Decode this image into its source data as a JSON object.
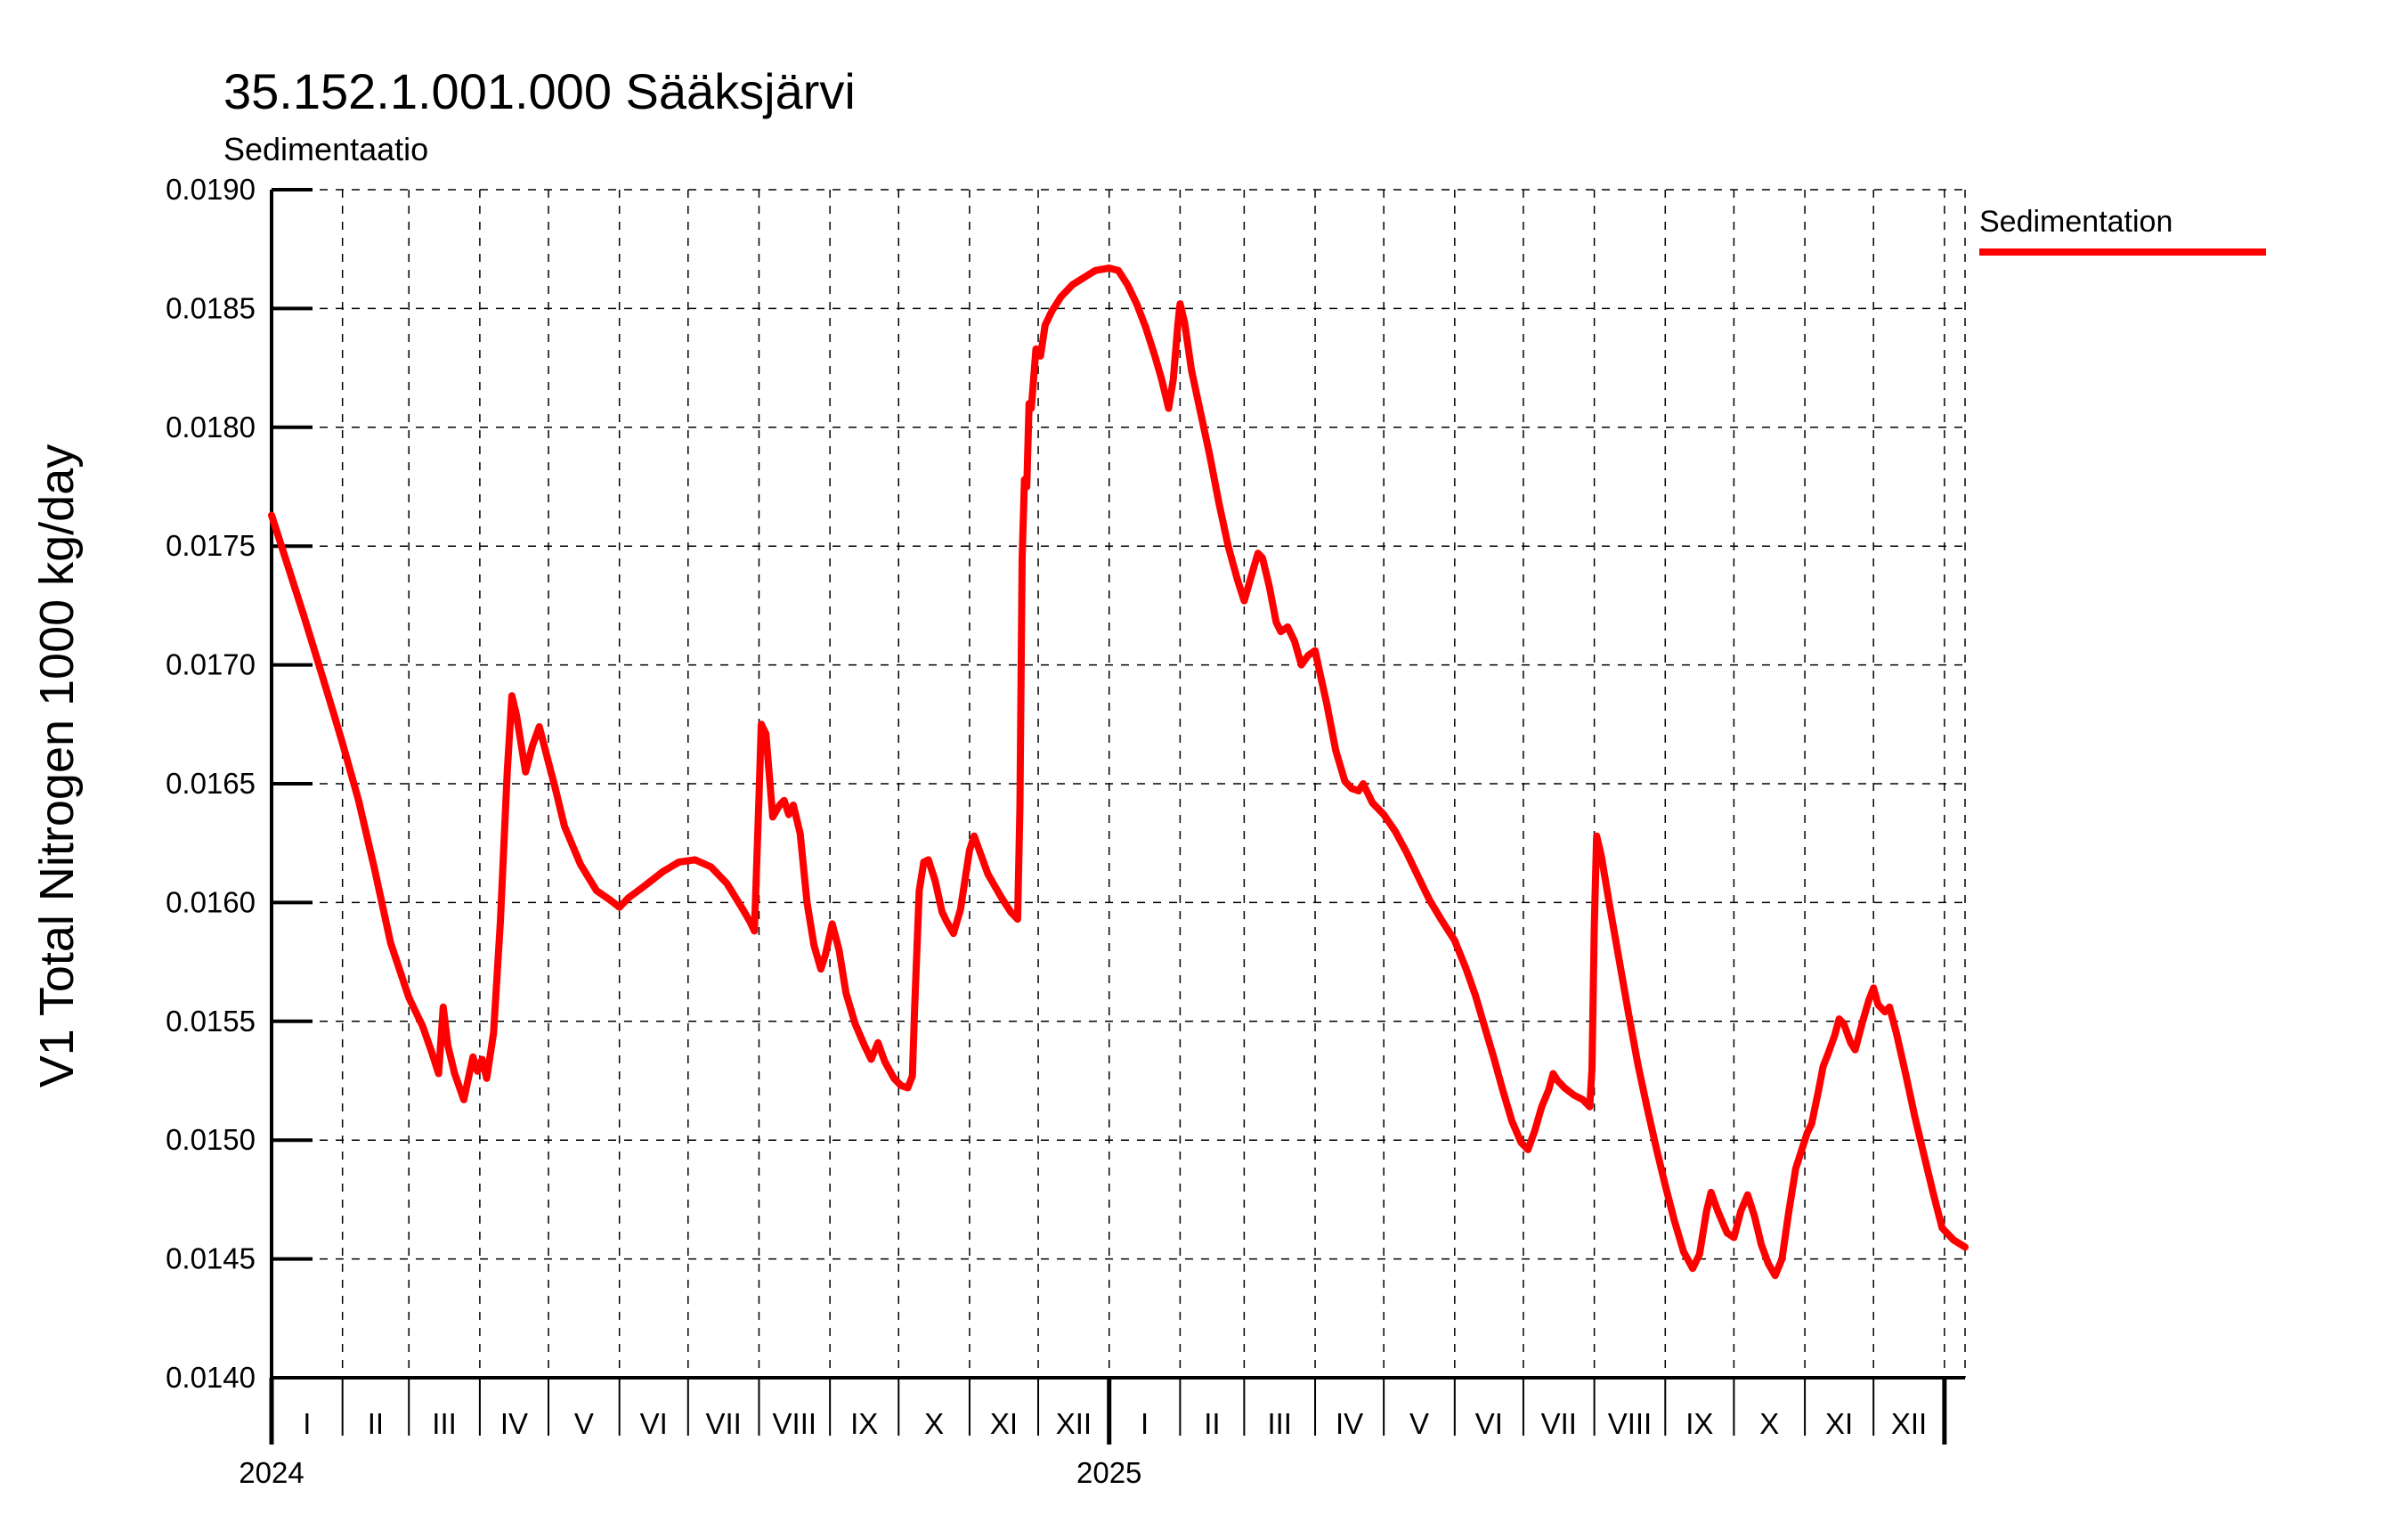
{
  "title": "35.152.1.001.000 Sääksjärvi",
  "subtitle": "Sedimentaatio",
  "legend": {
    "label": "Sedimentation",
    "color": "#ff0000"
  },
  "chart_data": {
    "type": "line",
    "title": "35.152.1.001.000 Sääksjärvi",
    "subtitle": "Sedimentaatio",
    "xlabel": "",
    "ylabel": "V1 Total Nitrogen 1000 kg/day",
    "ylim": [
      0.014,
      0.019
    ],
    "grid": "dashed",
    "legend_position": "top-right",
    "y_ticks": {
      "values": [
        0.014,
        0.0145,
        0.015,
        0.0155,
        0.016,
        0.0165,
        0.017,
        0.0175,
        0.018,
        0.0185,
        0.019
      ],
      "labels": [
        "0.0140",
        "0.0145",
        "0.0150",
        "0.0155",
        "0.0160",
        "0.0165",
        "0.0170",
        "0.0175",
        "0.0180",
        "0.0185",
        "0.0190"
      ]
    },
    "x_axis": {
      "unit": "days since 2024-01-01",
      "x_end_day": 740,
      "month_boundaries_days": [
        0,
        31,
        60,
        91,
        121,
        152,
        182,
        213,
        244,
        274,
        305,
        335,
        366,
        397,
        425,
        456,
        486,
        517,
        547,
        578,
        609,
        639,
        670,
        700,
        731
      ],
      "month_labels": [
        "I",
        "II",
        "III",
        "IV",
        "V",
        "VI",
        "VII",
        "VIII",
        "IX",
        "X",
        "XI",
        "XII",
        "I",
        "II",
        "III",
        "IV",
        "V",
        "VI",
        "VII",
        "VIII",
        "IX",
        "X",
        "XI",
        "XII"
      ],
      "years": [
        {
          "label": "2024",
          "day": 0
        },
        {
          "label": "2025",
          "day": 366
        }
      ],
      "year_end_day": 731
    },
    "series": [
      {
        "name": "Sedimentation",
        "color": "#ff0000",
        "points": [
          [
            0,
            0.01763
          ],
          [
            7,
            0.01742
          ],
          [
            14,
            0.01721
          ],
          [
            21,
            0.01699
          ],
          [
            27,
            0.0168
          ],
          [
            31,
            0.01667
          ],
          [
            38,
            0.01643
          ],
          [
            45,
            0.01614
          ],
          [
            52,
            0.01583
          ],
          [
            60,
            0.0156
          ],
          [
            66,
            0.01548
          ],
          [
            70,
            0.01537
          ],
          [
            73,
            0.01528
          ],
          [
            75,
            0.01556
          ],
          [
            77,
            0.0154
          ],
          [
            80,
            0.01528
          ],
          [
            84,
            0.01517
          ],
          [
            88,
            0.01535
          ],
          [
            90,
            0.01529
          ],
          [
            92,
            0.01534
          ],
          [
            94,
            0.01526
          ],
          [
            97,
            0.01545
          ],
          [
            100,
            0.01592
          ],
          [
            103,
            0.01655
          ],
          [
            105,
            0.01687
          ],
          [
            107,
            0.01679
          ],
          [
            111,
            0.01655
          ],
          [
            114,
            0.01666
          ],
          [
            117,
            0.01674
          ],
          [
            121,
            0.01659
          ],
          [
            124,
            0.01648
          ],
          [
            128,
            0.01632
          ],
          [
            135,
            0.01616
          ],
          [
            142,
            0.01605
          ],
          [
            148,
            0.01601
          ],
          [
            152,
            0.01598
          ],
          [
            156,
            0.01602
          ],
          [
            163,
            0.01607
          ],
          [
            171,
            0.01613
          ],
          [
            178,
            0.01617
          ],
          [
            185,
            0.01618
          ],
          [
            192,
            0.01615
          ],
          [
            199,
            0.01608
          ],
          [
            206,
            0.01597
          ],
          [
            209,
            0.01592
          ],
          [
            211,
            0.01588
          ],
          [
            213,
            0.01645
          ],
          [
            214,
            0.01675
          ],
          [
            216,
            0.01671
          ],
          [
            219,
            0.01636
          ],
          [
            222,
            0.01641
          ],
          [
            224,
            0.01643
          ],
          [
            226,
            0.01637
          ],
          [
            228,
            0.01641
          ],
          [
            231,
            0.01629
          ],
          [
            234,
            0.016
          ],
          [
            237,
            0.01582
          ],
          [
            240,
            0.01572
          ],
          [
            242,
            0.01578
          ],
          [
            245,
            0.01591
          ],
          [
            248,
            0.0158
          ],
          [
            251,
            0.01562
          ],
          [
            255,
            0.01549
          ],
          [
            259,
            0.0154
          ],
          [
            262,
            0.01534
          ],
          [
            265,
            0.01541
          ],
          [
            268,
            0.01533
          ],
          [
            272,
            0.01526
          ],
          [
            275,
            0.01523
          ],
          [
            278,
            0.01522
          ],
          [
            280,
            0.01527
          ],
          [
            281,
            0.01555
          ],
          [
            283,
            0.01605
          ],
          [
            285,
            0.01617
          ],
          [
            287,
            0.01618
          ],
          [
            290,
            0.01609
          ],
          [
            293,
            0.01596
          ],
          [
            295,
            0.01592
          ],
          [
            298,
            0.01587
          ],
          [
            301,
            0.01597
          ],
          [
            305,
            0.01622
          ],
          [
            307,
            0.01628
          ],
          [
            310,
            0.0162
          ],
          [
            313,
            0.01612
          ],
          [
            316,
            0.01607
          ],
          [
            319,
            0.01602
          ],
          [
            323,
            0.01596
          ],
          [
            326,
            0.01593
          ],
          [
            327,
            0.0164
          ],
          [
            328,
            0.01745
          ],
          [
            329,
            0.01778
          ],
          [
            330,
            0.01775
          ],
          [
            331,
            0.0181
          ],
          [
            332,
            0.01808
          ],
          [
            334,
            0.01833
          ],
          [
            336,
            0.0183
          ],
          [
            338,
            0.01843
          ],
          [
            341,
            0.01849
          ],
          [
            345,
            0.01855
          ],
          [
            350,
            0.0186
          ],
          [
            355,
            0.01863
          ],
          [
            360,
            0.01866
          ],
          [
            366,
            0.01867
          ],
          [
            370,
            0.01866
          ],
          [
            374,
            0.0186
          ],
          [
            378,
            0.01852
          ],
          [
            382,
            0.01842
          ],
          [
            386,
            0.0183
          ],
          [
            389,
            0.0182
          ],
          [
            392,
            0.01808
          ],
          [
            394,
            0.0182
          ],
          [
            396,
            0.01843
          ],
          [
            397,
            0.01852
          ],
          [
            399,
            0.01844
          ],
          [
            402,
            0.01824
          ],
          [
            406,
            0.01806
          ],
          [
            410,
            0.01788
          ],
          [
            414,
            0.01768
          ],
          [
            418,
            0.0175
          ],
          [
            422,
            0.01736
          ],
          [
            425,
            0.01727
          ],
          [
            428,
            0.01737
          ],
          [
            431,
            0.01747
          ],
          [
            433,
            0.01745
          ],
          [
            436,
            0.01733
          ],
          [
            439,
            0.01718
          ],
          [
            441,
            0.01714
          ],
          [
            444,
            0.01716
          ],
          [
            447,
            0.0171
          ],
          [
            450,
            0.017
          ],
          [
            453,
            0.01704
          ],
          [
            456,
            0.01706
          ],
          [
            458,
            0.01697
          ],
          [
            461,
            0.01684
          ],
          [
            465,
            0.01664
          ],
          [
            469,
            0.01651
          ],
          [
            472,
            0.01648
          ],
          [
            475,
            0.01647
          ],
          [
            477,
            0.0165
          ],
          [
            481,
            0.01642
          ],
          [
            486,
            0.01637
          ],
          [
            491,
            0.0163
          ],
          [
            496,
            0.01621
          ],
          [
            501,
            0.01611
          ],
          [
            506,
            0.01601
          ],
          [
            511,
            0.01593
          ],
          [
            517,
            0.01584
          ],
          [
            522,
            0.01572
          ],
          [
            526,
            0.01561
          ],
          [
            530,
            0.01548
          ],
          [
            534,
            0.01535
          ],
          [
            538,
            0.01521
          ],
          [
            542,
            0.01508
          ],
          [
            546,
            0.01499
          ],
          [
            549,
            0.01496
          ],
          [
            552,
            0.01504
          ],
          [
            555,
            0.01514
          ],
          [
            558,
            0.01521
          ],
          [
            560,
            0.01528
          ],
          [
            562,
            0.01525
          ],
          [
            565,
            0.01522
          ],
          [
            569,
            0.01519
          ],
          [
            573,
            0.01517
          ],
          [
            576,
            0.01514
          ],
          [
            577,
            0.0153
          ],
          [
            578,
            0.0159
          ],
          [
            579,
            0.01628
          ],
          [
            581,
            0.0162
          ],
          [
            585,
            0.01597
          ],
          [
            589,
            0.01575
          ],
          [
            593,
            0.01553
          ],
          [
            597,
            0.01532
          ],
          [
            601,
            0.01514
          ],
          [
            605,
            0.01497
          ],
          [
            609,
            0.01481
          ],
          [
            613,
            0.01466
          ],
          [
            617,
            0.01453
          ],
          [
            621,
            0.01446
          ],
          [
            624,
            0.01452
          ],
          [
            627,
            0.0147
          ],
          [
            629,
            0.01478
          ],
          [
            632,
            0.0147
          ],
          [
            636,
            0.01461
          ],
          [
            639,
            0.01459
          ],
          [
            642,
            0.0147
          ],
          [
            645,
            0.01477
          ],
          [
            648,
            0.01468
          ],
          [
            651,
            0.01456
          ],
          [
            654,
            0.01448
          ],
          [
            657,
            0.01443
          ],
          [
            660,
            0.0145
          ],
          [
            663,
            0.0147
          ],
          [
            666,
            0.01488
          ],
          [
            669,
            0.01497
          ],
          [
            671,
            0.01503
          ],
          [
            673,
            0.01507
          ],
          [
            676,
            0.01521
          ],
          [
            678,
            0.01531
          ],
          [
            680,
            0.01536
          ],
          [
            683,
            0.01544
          ],
          [
            685,
            0.01551
          ],
          [
            687,
            0.01549
          ],
          [
            690,
            0.01541
          ],
          [
            692,
            0.01538
          ],
          [
            695,
            0.01549
          ],
          [
            698,
            0.01559
          ],
          [
            700,
            0.01564
          ],
          [
            702,
            0.01557
          ],
          [
            705,
            0.01554
          ],
          [
            707,
            0.01556
          ],
          [
            710,
            0.01545
          ],
          [
            714,
            0.01528
          ],
          [
            718,
            0.0151
          ],
          [
            722,
            0.01494
          ],
          [
            726,
            0.01478
          ],
          [
            730,
            0.01463
          ],
          [
            735,
            0.01458
          ],
          [
            740,
            0.01455
          ]
        ]
      }
    ]
  }
}
